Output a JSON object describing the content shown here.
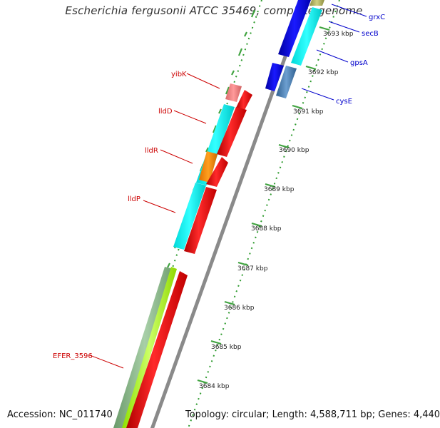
{
  "title": "Escherichia fergusonii ATCC 35469, complete genome",
  "footer": {
    "accession": "Accession: NC_011740",
    "summary": "Topology: circular; Length: 4,588,711 bp; Genes: 4,440"
  },
  "colors": {
    "backbone": "#8a8a8a",
    "tick": "#3fa33f",
    "dot": "#2e9b2e",
    "forward_label": "#cc0000",
    "reverse_label": "#0000cc",
    "red_gene": "#ff0000",
    "cyan_gene": "#00f0f0",
    "orange_gene": "#ff8c00",
    "pink_gene": "#f08080",
    "blue_gene": "#0000e6",
    "steel_gene": "#4a7fb5",
    "green_gene": "#8fbc8f",
    "lime_gene": "#adff2f",
    "olive_gene": "#b5b56a"
  },
  "scale_labels": [
    "3693 kbp",
    "3692 kbp",
    "3691 kbp",
    "3690 kbp",
    "3689 kbp",
    "3688 kbp",
    "3687 kbp",
    "3686 kbp",
    "3685 kbp",
    "3684 kbp"
  ],
  "gene_labels_forward": [
    "yibK",
    "lldD",
    "lldR",
    "lldP",
    "EFER_3596"
  ],
  "gene_labels_reverse": [
    "grxC",
    "secB",
    "gpsA",
    "cysE"
  ]
}
